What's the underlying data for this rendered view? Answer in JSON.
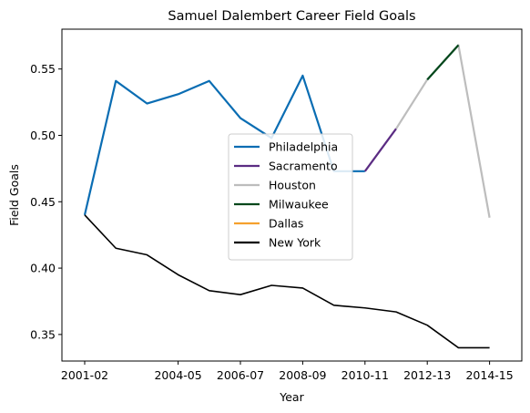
{
  "chart_data": {
    "type": "line",
    "title": "Samuel Dalembert Career Field Goals",
    "xlabel": "Year",
    "ylabel": "Field Goals",
    "x": [
      "2001-02",
      "2002-03",
      "2003-04",
      "2004-05",
      "2005-06",
      "2006-07",
      "2007-08",
      "2008-09",
      "2009-10",
      "2010-11",
      "2011-12",
      "2012-13",
      "2013-14",
      "2014-15"
    ],
    "xticks": [
      "2001-02",
      "2004-05",
      "2006-07",
      "2008-09",
      "2010-11",
      "2012-13",
      "2014-15"
    ],
    "ylim": [
      0.33,
      0.58
    ],
    "yticks": [
      0.35,
      0.4,
      0.45,
      0.5,
      0.55
    ],
    "ytick_labels": [
      "0.35",
      "0.40",
      "0.45",
      "0.50",
      "0.55"
    ],
    "grid": false,
    "legend_position": "center",
    "series": [
      {
        "name": "Philadelphia",
        "color": "#0a6db3",
        "x": [
          "2001-02",
          "2002-03",
          "2003-04",
          "2004-05",
          "2005-06",
          "2006-07",
          "2007-08",
          "2008-09",
          "2009-10",
          "2010-11"
        ],
        "values": [
          0.44,
          0.541,
          0.524,
          0.531,
          0.541,
          0.513,
          0.498,
          0.545,
          0.473,
          0.473
        ]
      },
      {
        "name": "Sacramento",
        "color": "#5b2c83",
        "x": [
          "2010-11",
          "2011-12"
        ],
        "values": [
          0.473,
          0.505
        ]
      },
      {
        "name": "Houston",
        "color": "#bdbdbd",
        "x": [
          "2011-12",
          "2012-13",
          "2013-14",
          "2014-15"
        ],
        "values": [
          0.505,
          0.542,
          0.568,
          0.438
        ]
      },
      {
        "name": "Milwaukee",
        "color": "#00471b",
        "x": [
          "2012-13",
          "2013-14"
        ],
        "values": [
          0.542,
          0.568
        ]
      },
      {
        "name": "Dallas",
        "color": "#f5a12e",
        "x": [],
        "values": []
      },
      {
        "name": "New York",
        "color": "#000000",
        "x": [
          "2001-02",
          "2002-03",
          "2003-04",
          "2004-05",
          "2005-06",
          "2006-07",
          "2007-08",
          "2008-09",
          "2009-10",
          "2010-11",
          "2011-12",
          "2012-13",
          "2013-14",
          "2014-15"
        ],
        "values": [
          0.44,
          0.415,
          0.41,
          0.395,
          0.383,
          0.38,
          0.387,
          0.385,
          0.372,
          0.37,
          0.367,
          0.357,
          0.34,
          0.34
        ]
      }
    ]
  }
}
